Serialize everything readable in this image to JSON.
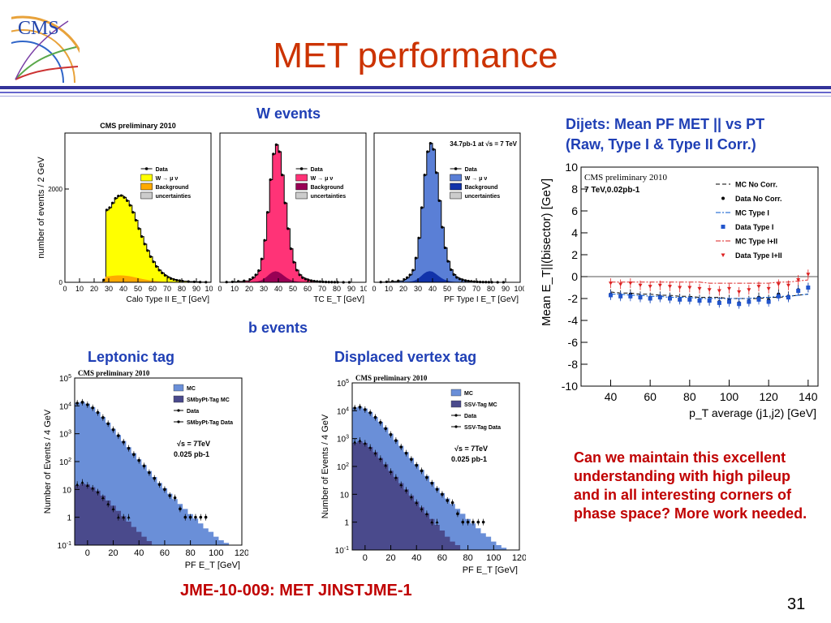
{
  "slide": {
    "title": "MET performance",
    "logo_text": "CMS",
    "page_number": "31",
    "w_events_label": "W events",
    "b_events_label": "b events",
    "leptonic_label": "Leptonic tag",
    "displaced_label": "Displaced vertex tag",
    "dijets_title_line1": "Dijets: Mean PF MET || vs PT",
    "dijets_title_line2": "(Raw, Type I & Type II Corr.)",
    "comment": "Can we maintain this excellent understanding with high pileup and in all interesting corners of phase space?  More work needed.",
    "reference": "JME-10-009:  MET JINSTJME-1"
  },
  "colors": {
    "title": "#cc3300",
    "label_blue": "#1f3fb5",
    "comment_red": "#c00000"
  },
  "chart_data": [
    {
      "id": "w-calo",
      "type": "area",
      "title": "CMS preliminary 2010",
      "xlabel": "Calo Type II E_T [GeV]",
      "ylabel": "number of events / 2 GeV",
      "xlim": [
        0,
        100
      ],
      "ylim": [
        0,
        3200
      ],
      "xticks": [
        "0",
        "10",
        "20",
        "30",
        "40",
        "50",
        "60",
        "70",
        "80",
        "90",
        "100"
      ],
      "yticks": [
        "0",
        "2000"
      ],
      "legend": [
        "Data",
        "W → μ ν",
        "Background",
        "uncertainties"
      ],
      "fill_color": "#ffff00",
      "x": [
        0,
        4,
        8,
        12,
        16,
        20,
        22,
        24,
        26,
        28,
        30,
        32,
        34,
        36,
        38,
        40,
        42,
        44,
        46,
        48,
        50,
        52,
        54,
        56,
        58,
        60,
        62,
        64,
        66,
        68,
        70,
        72,
        74,
        76,
        78,
        80,
        84,
        88,
        92,
        96,
        100
      ],
      "values": [
        0,
        0,
        0,
        0,
        0,
        0,
        0,
        0,
        50,
        1550,
        1600,
        1700,
        1800,
        1850,
        1860,
        1820,
        1750,
        1650,
        1500,
        1330,
        1150,
        980,
        820,
        680,
        550,
        440,
        340,
        260,
        200,
        150,
        110,
        80,
        60,
        45,
        35,
        25,
        15,
        10,
        5,
        3,
        0
      ]
    },
    {
      "id": "w-tc",
      "type": "area",
      "xlabel": "TC E_T [GeV]",
      "xlim": [
        0,
        100
      ],
      "ylim": [
        0,
        3200
      ],
      "xticks": [
        "0",
        "10",
        "20",
        "30",
        "40",
        "50",
        "60",
        "70",
        "80",
        "90",
        "100"
      ],
      "legend": [
        "Data",
        "W → μ ν",
        "Background",
        "uncertainties"
      ],
      "fill_color": "#ff3377",
      "x": [
        0,
        4,
        8,
        12,
        16,
        20,
        22,
        24,
        26,
        28,
        30,
        32,
        34,
        36,
        38,
        40,
        42,
        44,
        46,
        48,
        50,
        52,
        54,
        56,
        58,
        60,
        62,
        64,
        66,
        68,
        70,
        72,
        74,
        76,
        78,
        80,
        84,
        88,
        92,
        96,
        100
      ],
      "values": [
        0,
        5,
        10,
        20,
        30,
        60,
        100,
        160,
        250,
        500,
        900,
        1500,
        2200,
        2750,
        2950,
        2800,
        2300,
        1700,
        1150,
        720,
        430,
        260,
        160,
        100,
        70,
        50,
        35,
        25,
        18,
        13,
        10,
        7,
        5,
        4,
        3,
        2,
        1,
        1,
        0,
        0,
        0
      ]
    },
    {
      "id": "w-pf",
      "type": "area",
      "xlabel": "PF Type I E_T [GeV]",
      "annotation": "34.7pb-1 at √s = 7 TeV",
      "xlim": [
        0,
        100
      ],
      "ylim": [
        0,
        3200
      ],
      "xticks": [
        "0",
        "10",
        "20",
        "30",
        "40",
        "50",
        "60",
        "70",
        "80",
        "90",
        "100"
      ],
      "legend": [
        "Data",
        "W → μ ν",
        "Background",
        "uncertainties"
      ],
      "fill_color": "#5a7fd6",
      "x": [
        0,
        4,
        8,
        12,
        16,
        20,
        22,
        24,
        26,
        28,
        30,
        32,
        34,
        36,
        38,
        40,
        42,
        44,
        46,
        48,
        50,
        52,
        54,
        56,
        58,
        60,
        62,
        64,
        66,
        68,
        70,
        72,
        74,
        76,
        78,
        80,
        84,
        88,
        92,
        96,
        100
      ],
      "values": [
        0,
        5,
        10,
        20,
        30,
        60,
        100,
        160,
        260,
        520,
        950,
        1600,
        2300,
        2800,
        2980,
        2850,
        2350,
        1750,
        1180,
        740,
        450,
        270,
        165,
        105,
        72,
        52,
        37,
        26,
        19,
        14,
        10,
        7,
        5,
        4,
        3,
        2,
        1,
        1,
        0,
        0,
        0
      ]
    },
    {
      "id": "dijets-mean-met",
      "type": "scatter",
      "title": "CMS preliminary 2010",
      "annotation": "7 TeV,0.02pb-1",
      "xlabel": "p_T  average (j1,j2) [GeV]",
      "ylabel": "Mean E_T||(bisector) [GeV]",
      "xlim": [
        25,
        145
      ],
      "ylim": [
        -10,
        10
      ],
      "xticks": [
        "40",
        "60",
        "80",
        "100",
        "120",
        "140"
      ],
      "yticks": [
        "-10",
        "-8",
        "-6",
        "-4",
        "-2",
        "0",
        "2",
        "4",
        "6",
        "8",
        "10"
      ],
      "legend": [
        "MC No Corr.",
        "Data No Corr.",
        "MC Type I",
        "Data Type I",
        "MC Type I+II",
        "Data Type I+II"
      ],
      "x": [
        40,
        45,
        50,
        55,
        60,
        65,
        70,
        75,
        80,
        85,
        90,
        95,
        100,
        105,
        110,
        115,
        120,
        125,
        130,
        135,
        140
      ],
      "series": [
        {
          "name": "MC No Corr.",
          "values": [
            -1.4,
            -1.5,
            -1.5,
            -1.6,
            -1.6,
            -1.7,
            -1.7,
            -1.8,
            -1.8,
            -1.9,
            -1.9,
            -1.9,
            -2.0,
            -2.0,
            -2.0,
            -2.0,
            -1.9,
            -1.9,
            -1.8,
            -1.7,
            -1.6
          ]
        },
        {
          "name": "Data No Corr.",
          "values": [
            -1.6,
            -1.7,
            -1.6,
            -1.8,
            -1.9,
            -1.8,
            -1.9,
            -2.0,
            -2.0,
            -2.1,
            -2.2,
            -2.3,
            -2.1,
            -2.4,
            -2.2,
            -1.9,
            -2.1,
            -1.6,
            -1.8,
            -1.2,
            -1.0
          ]
        },
        {
          "name": "MC Type I",
          "values": [
            -1.6,
            -1.6,
            -1.7,
            -1.7,
            -1.8,
            -1.8,
            -1.9,
            -1.9,
            -1.9,
            -2.0,
            -2.0,
            -2.0,
            -2.0,
            -2.0,
            -2.0,
            -1.9,
            -1.9,
            -1.8,
            -1.8,
            -1.7,
            -1.6
          ]
        },
        {
          "name": "Data Type I",
          "values": [
            -1.7,
            -1.8,
            -1.8,
            -1.9,
            -2.0,
            -1.9,
            -2.0,
            -2.1,
            -2.1,
            -2.2,
            -2.2,
            -2.4,
            -2.3,
            -2.5,
            -2.3,
            -2.1,
            -2.3,
            -1.8,
            -1.9,
            -1.3,
            -1.0
          ]
        },
        {
          "name": "MC Type I+II",
          "values": [
            -0.5,
            -0.5,
            -0.5,
            -0.5,
            -0.5,
            -0.5,
            -0.5,
            -0.5,
            -0.5,
            -0.5,
            -0.6,
            -0.6,
            -0.6,
            -0.6,
            -0.6,
            -0.6,
            -0.6,
            -0.5,
            -0.5,
            -0.4,
            -0.3
          ]
        },
        {
          "name": "Data Type I+II",
          "values": [
            -0.6,
            -0.7,
            -0.6,
            -0.8,
            -0.9,
            -0.8,
            -0.9,
            -1.0,
            -1.0,
            -1.1,
            -1.2,
            -1.3,
            -1.1,
            -1.4,
            -1.2,
            -0.9,
            -1.1,
            -0.7,
            -0.8,
            -0.3,
            0.2
          ]
        }
      ]
    },
    {
      "id": "b-leptonic",
      "type": "area",
      "title": "CMS preliminary 2010",
      "xlabel": "PF E_T [GeV]",
      "ylabel": "Number of Events / 4 GeV",
      "annotation": "√s = 7TeV 0.025 pb-1",
      "log_y": true,
      "xlim": [
        -10,
        120
      ],
      "ylim": [
        0.1,
        100000
      ],
      "xticks": [
        "0",
        "20",
        "40",
        "60",
        "80",
        "100",
        "120"
      ],
      "yticks": [
        "10-1",
        "1",
        "10",
        "102",
        "103",
        "104",
        "105"
      ],
      "legend": [
        "MC",
        "SMbyPt-Tag MC",
        "Data",
        "SMbyPt-Tag Data"
      ],
      "x": [
        -10,
        -6,
        -2,
        2,
        6,
        10,
        14,
        18,
        22,
        26,
        30,
        34,
        38,
        42,
        46,
        50,
        54,
        58,
        62,
        66,
        70,
        74,
        78,
        82,
        86,
        90,
        94,
        98,
        102,
        106,
        110,
        114,
        118
      ],
      "series": [
        {
          "name": "MC",
          "values": [
            13000,
            14000,
            12000,
            9000,
            6000,
            4000,
            2500,
            1500,
            900,
            550,
            330,
            200,
            120,
            75,
            46,
            28,
            17,
            11,
            7,
            4.5,
            3,
            2,
            1.3,
            0.9,
            0.6,
            0.4,
            0.3,
            0.2,
            0.15,
            0.12,
            0.1,
            0.1,
            0.1
          ]
        },
        {
          "name": "SMbyPt-Tag MC",
          "values": [
            14,
            16,
            15,
            12,
            9,
            6,
            4,
            2.6,
            1.7,
            1.1,
            0.7,
            0.45,
            0.3,
            0.2,
            0.14,
            0.1,
            0.1,
            0.1,
            0.1,
            0.1,
            0.1,
            0.1,
            0.1,
            0.1,
            0.1,
            0.1,
            0.1,
            0.1,
            0.1,
            0.1,
            0.1,
            0.1,
            0.1
          ]
        },
        {
          "name": "Data",
          "values": [
            12500,
            13500,
            11000,
            8500,
            5800,
            3800,
            2300,
            1400,
            850,
            500,
            300,
            180,
            110,
            70,
            40,
            25,
            15,
            10,
            6,
            5,
            2,
            1,
            1,
            1,
            1,
            1,
            0,
            0,
            0,
            0,
            0,
            0,
            0
          ]
        },
        {
          "name": "SMbyPt-Tag Data",
          "values": [
            15,
            18,
            14,
            11,
            8,
            5,
            3,
            2,
            1,
            1,
            1,
            0,
            0,
            0,
            0,
            0,
            0,
            0,
            0,
            0,
            0,
            0,
            0,
            0,
            0,
            0,
            0,
            0,
            0,
            0,
            0,
            0,
            0
          ]
        }
      ]
    },
    {
      "id": "b-displaced",
      "type": "area",
      "title": "CMS preliminary 2010",
      "xlabel": "PF E_T [GeV]",
      "ylabel": "Number of Events / 4 GeV",
      "annotation": "√s = 7TeV 0.025 pb-1",
      "log_y": true,
      "xlim": [
        -10,
        120
      ],
      "ylim": [
        0.1,
        100000
      ],
      "xticks": [
        "0",
        "20",
        "40",
        "60",
        "80",
        "100",
        "120"
      ],
      "yticks": [
        "10-1",
        "1",
        "10",
        "102",
        "103",
        "104",
        "105"
      ],
      "legend": [
        "MC",
        "SSV-Tag MC",
        "Data",
        "SSV-Tag Data"
      ],
      "x": [
        -10,
        -6,
        -2,
        2,
        6,
        10,
        14,
        18,
        22,
        26,
        30,
        34,
        38,
        42,
        46,
        50,
        54,
        58,
        62,
        66,
        70,
        74,
        78,
        82,
        86,
        90,
        94,
        98,
        102,
        106,
        110,
        114,
        118
      ],
      "series": [
        {
          "name": "MC",
          "values": [
            13000,
            14000,
            12000,
            9000,
            6000,
            4000,
            2500,
            1500,
            900,
            550,
            330,
            200,
            120,
            75,
            46,
            28,
            17,
            11,
            7,
            4.5,
            3,
            2,
            1.3,
            0.9,
            0.6,
            0.4,
            0.3,
            0.2,
            0.15,
            0.12,
            0.1,
            0.1,
            0.1
          ]
        },
        {
          "name": "SSV-Tag MC",
          "values": [
            700,
            800,
            700,
            500,
            330,
            200,
            120,
            70,
            42,
            25,
            15,
            9,
            5.5,
            3.4,
            2.1,
            1.3,
            0.8,
            0.5,
            0.3,
            0.2,
            0.15,
            0.1,
            0.1,
            0.1,
            0.1,
            0.1,
            0.1,
            0.1,
            0.1,
            0.1,
            0.1,
            0.1,
            0.1
          ]
        },
        {
          "name": "Data",
          "values": [
            12500,
            13500,
            11000,
            8500,
            5800,
            3800,
            2300,
            1400,
            850,
            500,
            300,
            180,
            110,
            70,
            40,
            25,
            15,
            10,
            6,
            5,
            2,
            1,
            1,
            1,
            1,
            1,
            0,
            0,
            0,
            0,
            0,
            0,
            0
          ]
        },
        {
          "name": "SSV-Tag Data",
          "values": [
            750,
            850,
            680,
            480,
            300,
            190,
            110,
            65,
            40,
            22,
            14,
            8,
            5,
            3,
            2,
            1,
            1,
            0,
            0,
            0,
            0,
            0,
            0,
            0,
            0,
            0,
            0,
            0,
            0,
            0,
            0,
            0,
            0
          ]
        }
      ]
    }
  ]
}
